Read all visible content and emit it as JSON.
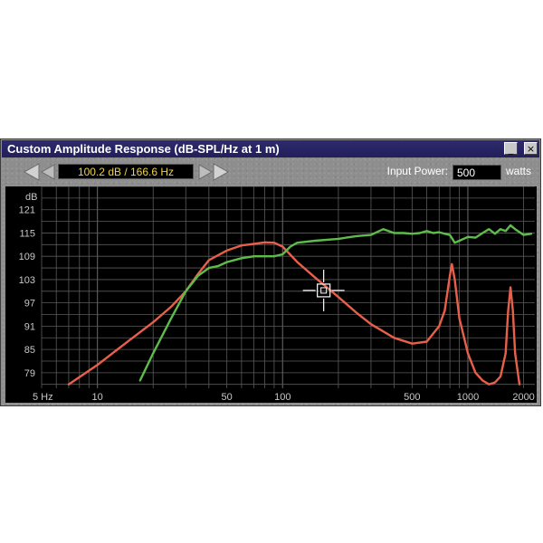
{
  "window": {
    "title": "Custom Amplitude Response (dB-SPL/Hz at 1 m)",
    "minimize_glyph": "_",
    "close_glyph": "×"
  },
  "toolbar": {
    "prev_icon": "triangle-left-icon",
    "next_icon": "triangle-right-icon",
    "cursor_readout": "100.2 dB / 166.6 Hz",
    "power_label": "Input Power:",
    "power_value": "500",
    "power_unit": "watts"
  },
  "colors": {
    "plot_bg": "#000000",
    "grid": "#5a5a5a",
    "red_curve": "#e8604a",
    "green_curve": "#5ebc4a",
    "cursor": "#ffffff",
    "readout_text": "#f0d24a"
  },
  "chart_data": {
    "type": "line",
    "x_scale": "log",
    "xlim": [
      5,
      2300
    ],
    "ylim": [
      75,
      127
    ],
    "ylabel": "dB",
    "x_ticks": [
      {
        "value": 5,
        "label": "5 Hz"
      },
      {
        "value": 10,
        "label": "10"
      },
      {
        "value": 50,
        "label": "50"
      },
      {
        "value": 100,
        "label": "100"
      },
      {
        "value": 500,
        "label": "500"
      },
      {
        "value": 1000,
        "label": "1000"
      },
      {
        "value": 2000,
        "label": "2000"
      }
    ],
    "y_ticks": [
      121,
      115,
      109,
      103,
      97,
      91,
      85,
      79
    ],
    "grid": true,
    "cursor": {
      "x": 166.6,
      "y": 100.2
    },
    "series": [
      {
        "color": "#e8604a",
        "x": [
          7,
          10,
          15,
          20,
          25,
          30,
          35,
          40,
          50,
          60,
          70,
          80,
          90,
          100,
          120,
          150,
          200,
          250,
          300,
          400,
          500,
          600,
          700,
          750,
          800,
          820,
          850,
          900,
          1000,
          1100,
          1200,
          1300,
          1400,
          1500,
          1600,
          1650,
          1700,
          1750,
          1800,
          1900
        ],
        "y": [
          76,
          81,
          87.5,
          92,
          96,
          100,
          104.5,
          108,
          110.5,
          111.8,
          112.2,
          112.6,
          112.5,
          111.5,
          107.5,
          103.5,
          98.5,
          94.5,
          91.5,
          88,
          86.5,
          87,
          91,
          95,
          104,
          107,
          103,
          93,
          84,
          79,
          77,
          76,
          76.5,
          78,
          84,
          95,
          101,
          95,
          84,
          76
        ]
      },
      {
        "color": "#5ebc4a",
        "x": [
          17,
          20,
          25,
          30,
          35,
          40,
          45,
          50,
          60,
          70,
          80,
          90,
          100,
          110,
          120,
          150,
          200,
          250,
          300,
          350,
          400,
          450,
          500,
          550,
          600,
          650,
          700,
          750,
          800,
          850,
          900,
          1000,
          1100,
          1200,
          1300,
          1400,
          1500,
          1600,
          1700,
          1800,
          2000,
          2200
        ],
        "y": [
          77,
          84,
          93,
          100,
          104,
          106,
          106.5,
          107.5,
          108.5,
          109,
          109,
          109,
          109.5,
          111.5,
          112.5,
          113,
          113.5,
          114.2,
          114.5,
          116,
          115,
          115,
          114.8,
          115,
          115.5,
          115,
          115.2,
          114.8,
          114.5,
          112.5,
          113,
          114,
          113.8,
          115,
          116,
          114.8,
          116,
          115.5,
          117,
          116,
          114.5,
          114.8
        ]
      }
    ]
  }
}
